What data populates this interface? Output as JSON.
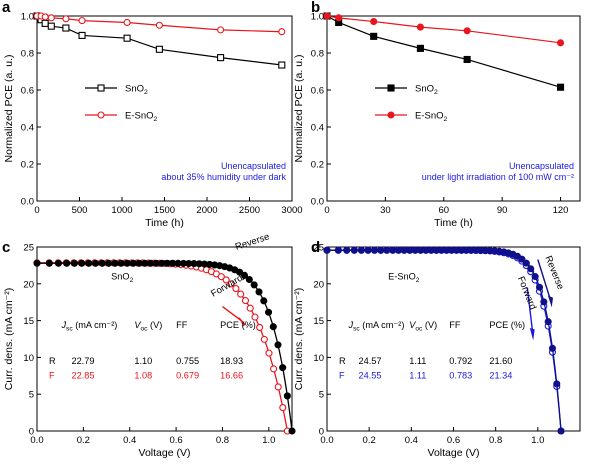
{
  "colors": {
    "black": "#000000",
    "red": "#e8161e",
    "blue": "#1a1ae0",
    "navy": "#10108a",
    "hollow_blue": "#6f7de8"
  },
  "chart_data": [
    {
      "panel": "a",
      "type": "line",
      "xlabel": "Time (h)",
      "ylabel": "Normalized PCE (a. u.)",
      "xlim": [
        0,
        3000
      ],
      "ylim": [
        0,
        1.0
      ],
      "xticks": [
        "0",
        "500",
        "1000",
        "1500",
        "2000",
        "2500",
        "3000"
      ],
      "yticks": [
        "0.0",
        "0.2",
        "0.4",
        "0.6",
        "0.8",
        "1.0"
      ],
      "legend": {
        "position": "center-left",
        "entries": [
          {
            "base": "SnO",
            "sub": "2"
          },
          {
            "base": "E-SnO",
            "sub": "2"
          }
        ]
      },
      "annotation": [
        "Unencapsulated",
        "about 35% humidity under dark"
      ],
      "series": [
        {
          "name": "SnO2",
          "color": "#000000",
          "marker": "open-square",
          "x": [
            0,
            48,
            96,
            168,
            340,
            530,
            1060,
            1440,
            2160,
            2880
          ],
          "y": [
            1.0,
            0.98,
            0.96,
            0.945,
            0.935,
            0.895,
            0.88,
            0.82,
            0.775,
            0.735
          ]
        },
        {
          "name": "E-SnO2",
          "color": "#e8161e",
          "marker": "open-circle",
          "x": [
            0,
            48,
            96,
            168,
            340,
            530,
            1060,
            1440,
            2160,
            2880
          ],
          "y": [
            1.0,
            1.0,
            0.995,
            0.99,
            0.985,
            0.975,
            0.965,
            0.95,
            0.925,
            0.915
          ]
        }
      ]
    },
    {
      "panel": "b",
      "type": "line",
      "xlabel": "Time (h)",
      "ylabel": "Normalized PCE (a. u.)",
      "xlim": [
        0,
        130
      ],
      "ylim": [
        0,
        1.0
      ],
      "xticks": [
        "0",
        "30",
        "60",
        "90",
        "120"
      ],
      "yticks": [
        "0.0",
        "0.2",
        "0.4",
        "0.6",
        "0.8",
        "1.0"
      ],
      "legend": {
        "position": "center-left",
        "entries": [
          {
            "base": "SnO",
            "sub": "2"
          },
          {
            "base": "E-SnO",
            "sub": "2"
          }
        ]
      },
      "annotation": [
        "Unencapsulated",
        "under light irradiation of 100 mW cm⁻²"
      ],
      "series": [
        {
          "name": "SnO2",
          "color": "#000000",
          "marker": "filled-square",
          "x": [
            0,
            6,
            24,
            48,
            72,
            120
          ],
          "y": [
            1.0,
            0.965,
            0.89,
            0.825,
            0.765,
            0.615
          ]
        },
        {
          "name": "E-SnO2",
          "color": "#e8161e",
          "marker": "filled-circle",
          "x": [
            0,
            6,
            24,
            48,
            72,
            120
          ],
          "y": [
            1.0,
            0.99,
            0.97,
            0.94,
            0.92,
            0.855
          ]
        }
      ]
    },
    {
      "panel": "c",
      "type": "line",
      "title": {
        "base": "SnO",
        "sub": "2"
      },
      "xlabel": "Voltage (V)",
      "ylabel": "Curr. dens. (mA cm⁻²)",
      "xlim": [
        0,
        1.1
      ],
      "ylim": [
        0,
        25
      ],
      "xticks": [
        "0.0",
        "0.2",
        "0.4",
        "0.6",
        "0.8",
        "1.0"
      ],
      "yticks": [
        "0",
        "5",
        "10",
        "15",
        "20",
        "25"
      ],
      "arrows": [
        "Reverse",
        "Forward"
      ],
      "table": {
        "headers": [
          {
            "base": "J",
            "sub": "sc",
            "rest": " (mA cm⁻²)"
          },
          {
            "base": "V",
            "sub": "oc",
            "rest": " (V)"
          },
          {
            "base": "FF",
            "sub": "",
            "rest": ""
          },
          {
            "base": "PCE (%)",
            "sub": "",
            "rest": ""
          }
        ],
        "rows": [
          {
            "label": "R",
            "values": [
              "22.79",
              "1.10",
              "0.755",
              "18.93"
            ],
            "color": "#000000"
          },
          {
            "label": "F",
            "values": [
              "22.85",
              "1.08",
              "0.679",
              "16.66"
            ],
            "color": "#e8161e"
          }
        ]
      },
      "series": [
        {
          "name": "Reverse",
          "color": "#000000",
          "marker": "filled-circle",
          "jsc": 22.79,
          "voc": 1.1,
          "ff": 0.755
        },
        {
          "name": "Forward",
          "color": "#e8161e",
          "marker": "open-circle",
          "jsc": 22.85,
          "voc": 1.08,
          "ff": 0.679
        }
      ]
    },
    {
      "panel": "d",
      "type": "line",
      "title": {
        "base": "E-SnO",
        "sub": "2"
      },
      "xlabel": "Voltage (V)",
      "ylabel": "Curr. dens. (mA cm⁻²)",
      "xlim": [
        0,
        1.2
      ],
      "ylim": [
        0,
        25
      ],
      "xticks": [
        "0.0",
        "0.2",
        "0.4",
        "0.6",
        "0.8",
        "1.0"
      ],
      "yticks": [
        "0",
        "5",
        "10",
        "15",
        "20",
        "25"
      ],
      "arrows": [
        "Reverse",
        "Forward"
      ],
      "table": {
        "headers": [
          {
            "base": "J",
            "sub": "sc",
            "rest": " (mA cm⁻²)"
          },
          {
            "base": "V",
            "sub": "oc",
            "rest": " (V)"
          },
          {
            "base": "FF",
            "sub": "",
            "rest": ""
          },
          {
            "base": "PCE (%)",
            "sub": "",
            "rest": ""
          }
        ],
        "rows": [
          {
            "label": "R",
            "values": [
              "24.57",
              "1.11",
              "0.792",
              "21.60"
            ],
            "color": "#000000"
          },
          {
            "label": "F",
            "values": [
              "24.55",
              "1.11",
              "0.783",
              "21.34"
            ],
            "color": "#1a1ae0"
          }
        ]
      },
      "series": [
        {
          "name": "Reverse",
          "color": "#10108a",
          "marker": "filled-circle",
          "jsc": 24.57,
          "voc": 1.11,
          "ff": 0.792
        },
        {
          "name": "Forward",
          "color": "#1a1ae0",
          "marker": "open-circle",
          "jsc": 24.55,
          "voc": 1.11,
          "ff": 0.783
        }
      ]
    }
  ]
}
